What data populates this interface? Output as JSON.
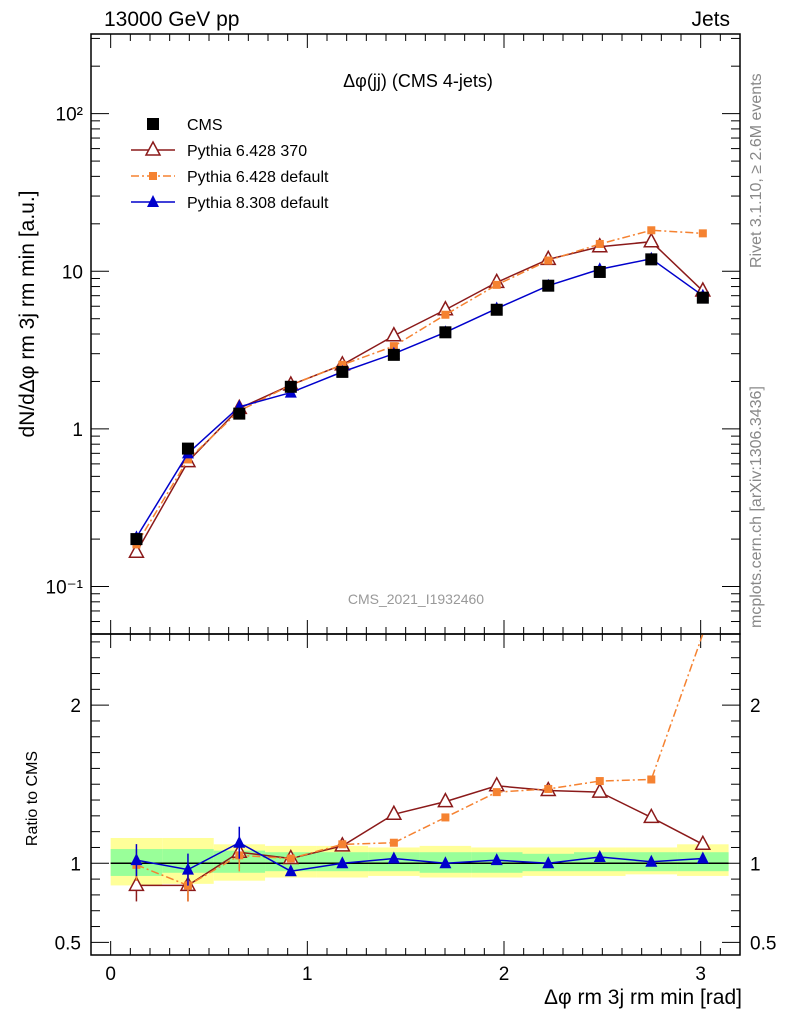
{
  "header": {
    "left": "13000 GeV pp",
    "right": "Jets"
  },
  "side": {
    "rivet": "Rivet 3.1.10, ≥ 2.6M events",
    "mcplots": "mcplots.cern.ch [arXiv:1306.3436]"
  },
  "chart_data": [
    {
      "type": "line",
      "panel": "main",
      "title": "Δφ(jj) (CMS 4-jets)",
      "watermark": "CMS_2021_I1932460",
      "ylabel": "dN/dΔφ rm 3j rm min [a.u.]",
      "yscale": "log",
      "ylim": [
        0.05,
        320
      ],
      "xlim": [
        -0.1,
        3.2
      ],
      "ytick_labels": [
        "10⁻¹",
        "1",
        "10",
        "10²"
      ],
      "legend_position": "top-left",
      "x": [
        0.131,
        0.393,
        0.654,
        0.916,
        1.178,
        1.44,
        1.702,
        1.963,
        2.225,
        2.487,
        2.749,
        3.011
      ],
      "series": [
        {
          "name": "CMS",
          "color": "#000000",
          "marker": "square",
          "values": [
            0.2,
            0.75,
            1.25,
            1.85,
            2.3,
            2.95,
            4.1,
            5.7,
            8.1,
            9.9,
            11.9,
            6.8
          ]
        },
        {
          "name": "Pythia 6.428 370",
          "color": "#8b1a1a",
          "marker": "open-triangle",
          "values": [
            0.165,
            0.62,
            1.35,
            1.9,
            2.55,
            3.9,
            5.7,
            8.5,
            11.9,
            14.3,
            15.4,
            7.5
          ]
        },
        {
          "name": "Pythia 6.428 default",
          "color": "#f58231",
          "marker": "small-square",
          "dash": "dashdot",
          "values": [
            0.185,
            0.64,
            1.3,
            1.9,
            2.55,
            3.35,
            5.3,
            8.2,
            11.7,
            14.9,
            18.2,
            17.4
          ]
        },
        {
          "name": "Pythia 8.308 default",
          "color": "#0000cc",
          "marker": "filled-triangle",
          "values": [
            0.205,
            0.7,
            1.38,
            1.7,
            2.3,
            3.0,
            4.1,
            5.8,
            8.1,
            10.3,
            12.0,
            7.0
          ]
        }
      ]
    },
    {
      "type": "line",
      "panel": "ratio",
      "ylabel": "Ratio to CMS",
      "xlabel": "Δφ rm 3j rm min [rad]",
      "ylim": [
        0.42,
        2.45
      ],
      "xlim": [
        -0.1,
        3.2
      ],
      "ytick_labels": [
        "0.5",
        "1",
        "2"
      ],
      "xtick_labels": [
        "0",
        "1",
        "2",
        "3"
      ],
      "x": [
        0.131,
        0.393,
        0.654,
        0.916,
        1.178,
        1.44,
        1.702,
        1.963,
        2.225,
        2.487,
        2.749,
        3.011
      ],
      "band_edges": [
        0.0,
        0.262,
        0.524,
        0.785,
        1.047,
        1.309,
        1.571,
        1.833,
        2.094,
        2.356,
        2.618,
        2.88,
        3.142
      ],
      "band_green": [
        [
          0.92,
          1.09
        ],
        [
          0.94,
          1.09
        ],
        [
          0.94,
          1.08
        ],
        [
          0.95,
          1.07
        ],
        [
          0.95,
          1.07
        ],
        [
          0.95,
          1.07
        ],
        [
          0.94,
          1.07
        ],
        [
          0.94,
          1.07
        ],
        [
          0.95,
          1.06
        ],
        [
          0.95,
          1.07
        ],
        [
          0.95,
          1.07
        ],
        [
          0.95,
          1.07
        ]
      ],
      "band_yellow": [
        [
          0.86,
          1.16
        ],
        [
          0.87,
          1.16
        ],
        [
          0.89,
          1.12
        ],
        [
          0.91,
          1.11
        ],
        [
          0.91,
          1.11
        ],
        [
          0.92,
          1.1
        ],
        [
          0.91,
          1.11
        ],
        [
          0.91,
          1.1
        ],
        [
          0.92,
          1.1
        ],
        [
          0.92,
          1.1
        ],
        [
          0.93,
          1.1
        ],
        [
          0.92,
          1.12
        ]
      ],
      "series": [
        {
          "name": "Pythia 6.428 370",
          "color": "#8b1a1a",
          "marker": "open-triangle",
          "values": [
            0.86,
            0.86,
            1.07,
            1.03,
            1.11,
            1.31,
            1.39,
            1.49,
            1.46,
            1.45,
            1.29,
            1.12
          ]
        },
        {
          "name": "Pythia 6.428 default",
          "color": "#f58231",
          "marker": "small-square",
          "dash": "dashdot",
          "values": [
            0.99,
            0.86,
            1.05,
            1.03,
            1.12,
            1.13,
            1.29,
            1.45,
            1.47,
            1.52,
            1.53,
            2.45
          ]
        },
        {
          "name": "Pythia 8.308 default",
          "color": "#0000cc",
          "marker": "filled-triangle",
          "values": [
            1.02,
            0.96,
            1.13,
            0.95,
            1.0,
            1.03,
            1.0,
            1.02,
            1.0,
            1.04,
            1.01,
            1.03
          ]
        }
      ]
    }
  ]
}
